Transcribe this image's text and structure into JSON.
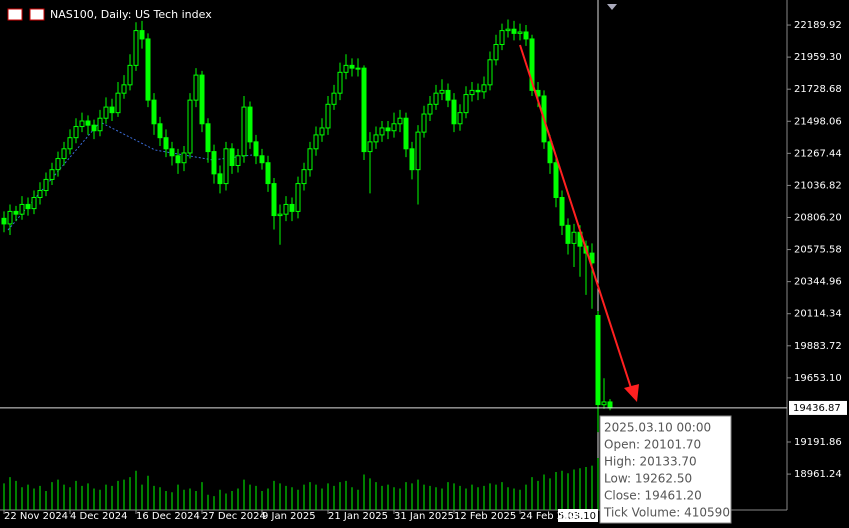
{
  "chart_data": {
    "type": "candlestick",
    "title": "NAS100, Daily:  US Tech index",
    "color": "#00ff00",
    "ylim": [
      18703,
      22370
    ],
    "yticks": [
      22189.92,
      {
        "value": 21959.3,
        "label": "21959.30"
      },
      21728.68,
      21498.06,
      21267.44,
      21036.82,
      {
        "value": 20806.2,
        "label": "20806.20"
      },
      20575.58,
      20344.96,
      20114.34,
      19883.72,
      {
        "value": 19653.1,
        "label": "19653.10"
      },
      19191.86,
      18961.24
    ],
    "current_price": 19436.87,
    "xticks": [
      {
        "value": 0,
        "label": "22 Nov 2024"
      },
      {
        "value": 11,
        "label": "4 Dec 2024"
      },
      {
        "value": 22,
        "label": "16 Dec 2024"
      },
      {
        "value": 33,
        "label": "27 Dec 2024"
      },
      {
        "value": 43,
        "label": "9 Jan 2025"
      },
      {
        "value": 54,
        "label": "21 Jan 2025"
      },
      {
        "value": 65,
        "label": "31 Jan 2025"
      },
      {
        "value": 75,
        "label": "12 Feb 2025"
      },
      {
        "value": 86,
        "label": "24 Feb 2025"
      }
    ],
    "cursor_label": "2025.03.10",
    "open": [
      20800,
      20760,
      20850,
      20830,
      20900,
      20870,
      20950,
      21000,
      21080,
      21150,
      21230,
      21300,
      21380,
      21460,
      21500,
      21470,
      21430,
      21520,
      21600,
      21560,
      21700,
      21760,
      21900,
      22150,
      22090,
      21650,
      21480,
      21380,
      21300,
      21250,
      21200,
      21270,
      21650,
      21830,
      21480,
      21280,
      21120,
      21050,
      21300,
      21180,
      21250,
      21600,
      21350,
      21250,
      21200,
      21050,
      20820,
      20830,
      20900,
      20850,
      21050,
      21150,
      21300,
      21400,
      21450,
      21620,
      21700,
      21850,
      21900,
      21880,
      21880,
      21280,
      21350,
      21400,
      21450,
      21430,
      21480,
      21520,
      21300,
      21150,
      21420,
      21550,
      21620,
      21700,
      21720,
      21650,
      21480,
      21560,
      21690,
      21720,
      21710,
      21760,
      21940,
      22050,
      22150,
      22160,
      22130,
      22140,
      22090,
      21720,
      21680,
      21350,
      21200,
      20950,
      20750,
      20620,
      20700,
      20600,
      20550,
      20101.7,
      19460,
      19480
    ],
    "high": [
      20850,
      20900,
      20890,
      20960,
      20950,
      21000,
      21060,
      21130,
      21200,
      21280,
      21350,
      21440,
      21520,
      21560,
      21540,
      21510,
      21580,
      21670,
      21660,
      21780,
      21830,
      21980,
      22210,
      22220,
      22130,
      21700,
      21530,
      21440,
      21350,
      21300,
      21320,
      21700,
      21880,
      21860,
      21520,
      21330,
      21180,
      21350,
      21340,
      21300,
      21680,
      21640,
      21400,
      21300,
      21250,
      21090,
      20900,
      20960,
      20950,
      21100,
      21200,
      21350,
      21460,
      21520,
      21680,
      21760,
      21920,
      21980,
      21950,
      21950,
      21900,
      21420,
      21460,
      21500,
      21500,
      21560,
      21580,
      21560,
      21350,
      21470,
      21610,
      21680,
      21760,
      21800,
      21770,
      21700,
      21620,
      21750,
      21780,
      21770,
      21820,
      22000,
      22120,
      22200,
      22230,
      22220,
      22200,
      22190,
      22120,
      21780,
      21720,
      21400,
      21250,
      21000,
      20800,
      20760,
      20750,
      20640,
      20620,
      20133.7,
      19650,
      19500
    ],
    "low": [
      20700,
      20680,
      20780,
      20790,
      20820,
      20830,
      20900,
      20960,
      21040,
      21100,
      21180,
      21260,
      21340,
      21420,
      21400,
      21370,
      21390,
      21480,
      21500,
      21530,
      21660,
      21720,
      21860,
      22020,
      21600,
      21400,
      21320,
      21240,
      21180,
      21120,
      21140,
      21230,
      21600,
      21420,
      21200,
      21050,
      20980,
      21000,
      21120,
      21130,
      21200,
      21300,
      21190,
      21150,
      20990,
      20720,
      20610,
      20780,
      20780,
      20800,
      21000,
      21100,
      21250,
      21350,
      21400,
      21580,
      21650,
      21800,
      21820,
      21820,
      21220,
      20980,
      21300,
      21350,
      21370,
      21380,
      21420,
      21240,
      21080,
      20900,
      21380,
      21500,
      21580,
      21650,
      21600,
      21420,
      21430,
      21520,
      21640,
      21650,
      21660,
      21720,
      21900,
      22010,
      22100,
      22080,
      22080,
      22040,
      21680,
      21600,
      21300,
      21120,
      20880,
      20680,
      20540,
      20450,
      20380,
      20250,
      20150,
      19262.5,
      19430,
      19420
    ],
    "close": [
      20760,
      20850,
      20830,
      20900,
      20870,
      20950,
      21000,
      21080,
      21150,
      21230,
      21300,
      21380,
      21460,
      21500,
      21470,
      21430,
      21520,
      21600,
      21560,
      21700,
      21760,
      21900,
      22150,
      22090,
      21650,
      21480,
      21380,
      21300,
      21250,
      21200,
      21270,
      21650,
      21830,
      21480,
      21280,
      21120,
      21050,
      21300,
      21180,
      21250,
      21600,
      21350,
      21250,
      21200,
      21050,
      20820,
      20830,
      20900,
      20850,
      21050,
      21150,
      21300,
      21400,
      21450,
      21620,
      21700,
      21850,
      21900,
      21880,
      21880,
      21280,
      21350,
      21400,
      21450,
      21430,
      21480,
      21520,
      21300,
      21150,
      21420,
      21550,
      21620,
      21700,
      21720,
      21650,
      21480,
      21560,
      21690,
      21720,
      21710,
      21760,
      21940,
      22050,
      22150,
      22160,
      22130,
      22140,
      22090,
      21720,
      21680,
      21350,
      21200,
      20950,
      20750,
      20620,
      20700,
      20600,
      20550,
      20480,
      19461.2,
      19480,
      19436.87
    ],
    "volume": [
      210000,
      260000,
      230000,
      180000,
      200000,
      170000,
      190000,
      150000,
      220000,
      240000,
      200000,
      180000,
      230000,
      190000,
      210000,
      170000,
      160000,
      200000,
      190000,
      230000,
      240000,
      260000,
      310000,
      200000,
      270000,
      190000,
      180000,
      150000,
      140000,
      200000,
      160000,
      170000,
      150000,
      220000,
      120000,
      110000,
      160000,
      130000,
      150000,
      170000,
      240000,
      200000,
      190000,
      150000,
      170000,
      230000,
      210000,
      190000,
      180000,
      160000,
      200000,
      220000,
      200000,
      170000,
      210000,
      190000,
      220000,
      230000,
      180000,
      160000,
      280000,
      250000,
      220000,
      190000,
      200000,
      180000,
      170000,
      220000,
      210000,
      240000,
      200000,
      190000,
      180000,
      170000,
      220000,
      210000,
      190000,
      170000,
      200000,
      180000,
      190000,
      210000,
      200000,
      220000,
      180000,
      170000,
      160000,
      200000,
      260000,
      230000,
      280000,
      250000,
      300000,
      310000,
      290000,
      320000,
      330000,
      340000,
      350000,
      410590,
      190000,
      60000
    ],
    "tooltip": [
      "2025.03.10 00:00",
      "Open: 20101.70",
      "High: 20133.70",
      "Low: 19262.50",
      "Close: 19461.20",
      "Tick Volume: 410590"
    ]
  }
}
